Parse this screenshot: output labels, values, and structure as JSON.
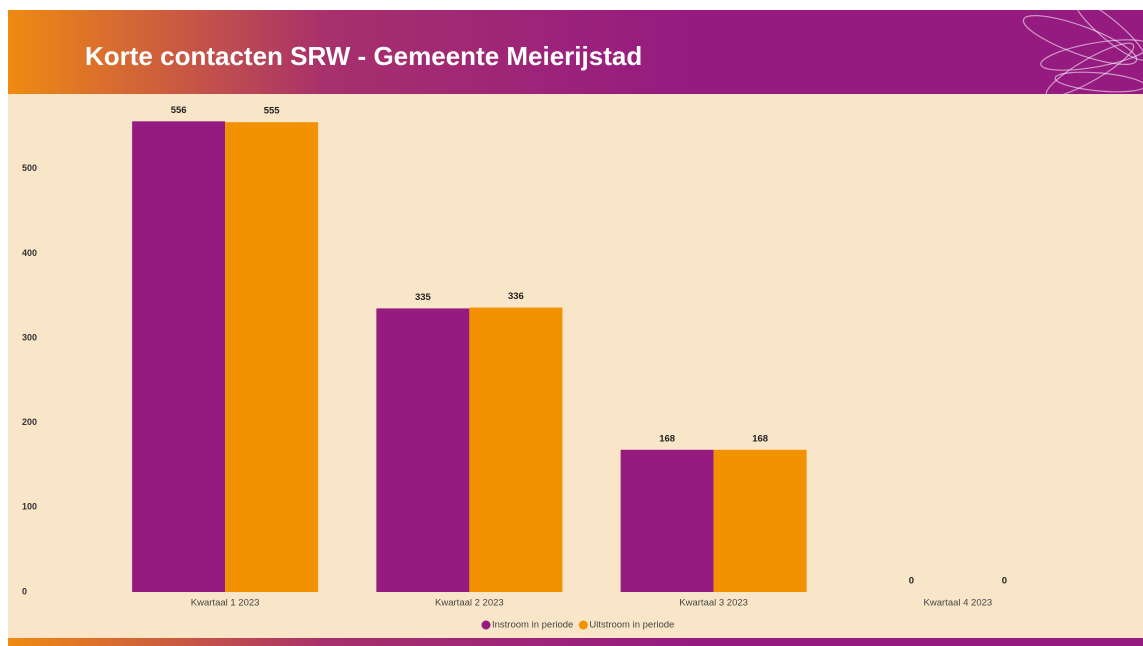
{
  "chart_data": {
    "type": "bar",
    "title": "Korte contacten SRW - Gemeente Meierijstad",
    "categories": [
      "Kwartaal 1 2023",
      "Kwartaal 2 2023",
      "Kwartaal 3 2023",
      "Kwartaal 4 2023"
    ],
    "series": [
      {
        "name": "Instroom in periode",
        "color": "#951b81",
        "values": [
          556,
          335,
          168,
          0
        ]
      },
      {
        "name": "Uitstroom in periode",
        "color": "#f39200",
        "values": [
          555,
          336,
          168,
          0
        ]
      }
    ],
    "ylim": [
      0,
      580
    ],
    "yticks": [
      0,
      100,
      200,
      300,
      400,
      500
    ],
    "grid": false,
    "legend": "bottom"
  }
}
